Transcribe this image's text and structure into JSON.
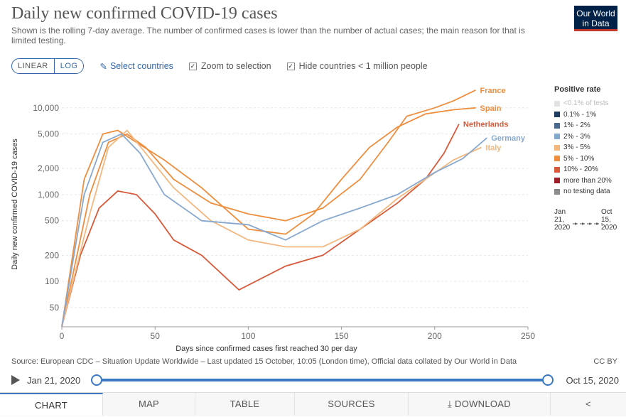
{
  "header": {
    "title": "Daily new confirmed COVID-19 cases",
    "subtitle": "Shown is the rolling 7-day average. The number of confirmed cases is lower than the number of actual cases; the main reason for that is limited testing.",
    "logo_line1": "Our World",
    "logo_line2": "in Data"
  },
  "controls": {
    "linear_label": "LINEAR",
    "log_label": "LOG",
    "active_scale": "LOG",
    "select_label": "Select countries",
    "zoom_label": "Zoom to selection",
    "zoom_checked": true,
    "hide_label": "Hide countries < 1 million people",
    "hide_checked": true
  },
  "legend": {
    "title": "Positive rate",
    "items": [
      {
        "label": "<0.1% of tests",
        "color": "#e2e2e2",
        "muted": true
      },
      {
        "label": "0.1% - 1%",
        "color": "#1f3a5f"
      },
      {
        "label": "1% - 2%",
        "color": "#4a6a8f"
      },
      {
        "label": "2% - 3%",
        "color": "#88a9cf"
      },
      {
        "label": "3% - 5%",
        "color": "#f2b880"
      },
      {
        "label": "5% - 10%",
        "color": "#ee8e3f"
      },
      {
        "label": "10% - 20%",
        "color": "#d85a3b"
      },
      {
        "label": "more than 20%",
        "color": "#a01e2a"
      },
      {
        "label": "no testing data",
        "color": "#8a8a8a"
      }
    ],
    "time_start": "Jan 21, 2020",
    "time_end": "Oct 15, 2020"
  },
  "chart_data": {
    "type": "line",
    "title": "Daily new confirmed COVID-19 cases",
    "xlabel": "Days since confirmed cases first reached 30 per day",
    "ylabel": "Daily new confirmed COVID-19 cases",
    "yscale": "log",
    "xlim": [
      0,
      250
    ],
    "ylim": [
      30,
      20000
    ],
    "x_ticks": [
      0,
      50,
      100,
      150,
      200,
      250
    ],
    "y_ticks": [
      50,
      100,
      200,
      500,
      1000,
      2000,
      5000,
      10000
    ],
    "y_tick_labels": [
      "50",
      "100",
      "200",
      "500",
      "1,000",
      "2,000",
      "5,000",
      "10,000"
    ],
    "series": [
      {
        "name": "France",
        "color": "#ee8e3f",
        "points": [
          [
            0,
            30
          ],
          [
            15,
            1000
          ],
          [
            25,
            4000
          ],
          [
            35,
            5000
          ],
          [
            45,
            3500
          ],
          [
            60,
            1500
          ],
          [
            80,
            800
          ],
          [
            100,
            600
          ],
          [
            120,
            500
          ],
          [
            140,
            700
          ],
          [
            160,
            1500
          ],
          [
            175,
            4000
          ],
          [
            185,
            8000
          ],
          [
            200,
            10000
          ],
          [
            210,
            12000
          ],
          [
            222,
            16000
          ]
        ]
      },
      {
        "name": "Spain",
        "color": "#ee8e3f",
        "points": [
          [
            0,
            30
          ],
          [
            12,
            1500
          ],
          [
            22,
            5000
          ],
          [
            30,
            5500
          ],
          [
            40,
            4000
          ],
          [
            55,
            2500
          ],
          [
            75,
            1200
          ],
          [
            100,
            400
          ],
          [
            120,
            350
          ],
          [
            135,
            600
          ],
          [
            150,
            1500
          ],
          [
            165,
            3500
          ],
          [
            180,
            6000
          ],
          [
            195,
            8500
          ],
          [
            210,
            9500
          ],
          [
            222,
            10000
          ]
        ]
      },
      {
        "name": "Netherlands",
        "color": "#d85a3b",
        "points": [
          [
            0,
            30
          ],
          [
            10,
            200
          ],
          [
            20,
            700
          ],
          [
            30,
            1100
          ],
          [
            40,
            1000
          ],
          [
            50,
            600
          ],
          [
            60,
            300
          ],
          [
            75,
            200
          ],
          [
            95,
            80
          ],
          [
            120,
            150
          ],
          [
            140,
            200
          ],
          [
            160,
            400
          ],
          [
            180,
            800
          ],
          [
            195,
            1500
          ],
          [
            205,
            3000
          ],
          [
            213,
            6500
          ]
        ]
      },
      {
        "name": "Italy",
        "color": "#f2b880",
        "points": [
          [
            0,
            30
          ],
          [
            15,
            600
          ],
          [
            25,
            3500
          ],
          [
            35,
            5500
          ],
          [
            45,
            3000
          ],
          [
            60,
            1200
          ],
          [
            80,
            500
          ],
          [
            100,
            300
          ],
          [
            120,
            250
          ],
          [
            140,
            250
          ],
          [
            160,
            400
          ],
          [
            180,
            900
          ],
          [
            195,
            1500
          ],
          [
            210,
            2500
          ],
          [
            225,
            3500
          ]
        ]
      },
      {
        "name": "Germany",
        "color": "#88a9cf",
        "points": [
          [
            0,
            30
          ],
          [
            12,
            1000
          ],
          [
            22,
            4000
          ],
          [
            32,
            5000
          ],
          [
            42,
            3000
          ],
          [
            55,
            1000
          ],
          [
            75,
            500
          ],
          [
            100,
            450
          ],
          [
            120,
            300
          ],
          [
            140,
            500
          ],
          [
            160,
            700
          ],
          [
            180,
            1000
          ],
          [
            200,
            1800
          ],
          [
            215,
            2600
          ],
          [
            228,
            4500
          ]
        ]
      }
    ]
  },
  "footer": {
    "source": "Source: European CDC – Situation Update Worldwide – Last updated 15 October, 10:05 (London time), Official data collated by Our World in Data",
    "license": "CC BY",
    "start_date": "Jan 21, 2020",
    "end_date": "Oct 15, 2020"
  },
  "tabs": [
    {
      "label": "CHART",
      "active": true
    },
    {
      "label": "MAP",
      "active": false
    },
    {
      "label": "TABLE",
      "active": false
    },
    {
      "label": "SOURCES",
      "active": false
    },
    {
      "label": "DOWNLOAD",
      "active": false
    },
    {
      "label": "",
      "active": false
    }
  ]
}
